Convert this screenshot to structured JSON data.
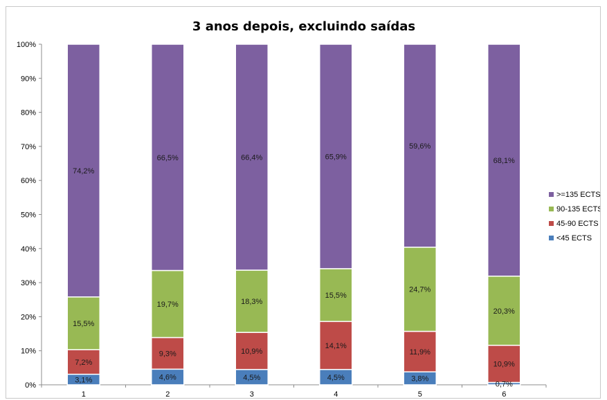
{
  "chart_data": {
    "type": "bar",
    "stacked": true,
    "percent": true,
    "title": "3 anos depois, excluindo saídas",
    "categories": [
      "1",
      "2",
      "3",
      "4",
      "5",
      "6"
    ],
    "ylim": [
      0,
      100
    ],
    "yticks": [
      "0%",
      "10%",
      "20%",
      "30%",
      "40%",
      "50%",
      "60%",
      "70%",
      "80%",
      "90%",
      "100%"
    ],
    "grid": false,
    "legend_position": "right",
    "series": [
      {
        "name": "<45 ECTS",
        "color": "#4a7ebb",
        "values": [
          3.1,
          4.6,
          4.5,
          4.5,
          3.8,
          0.7
        ],
        "labels": [
          "3,1%",
          "4,6%",
          "4,5%",
          "4,5%",
          "3,8%",
          "0,7%"
        ]
      },
      {
        "name": "45-90 ECTS",
        "color": "#be4b48",
        "values": [
          7.2,
          9.3,
          10.9,
          14.1,
          11.9,
          10.9
        ],
        "labels": [
          "7,2%",
          "9,3%",
          "10,9%",
          "14,1%",
          "11,9%",
          "10,9%"
        ]
      },
      {
        "name": "90-135 ECTS",
        "color": "#98b954",
        "values": [
          15.5,
          19.7,
          18.3,
          15.5,
          24.7,
          20.3
        ],
        "labels": [
          "15,5%",
          "19,7%",
          "18,3%",
          "15,5%",
          "24,7%",
          "20,3%"
        ]
      },
      {
        "name": ">=135 ECTS",
        "color": "#7d60a0",
        "values": [
          74.2,
          66.5,
          66.4,
          65.9,
          59.6,
          68.1
        ],
        "labels": [
          "74,2%",
          "66,5%",
          "66,4%",
          "65,9%",
          "59,6%",
          "68,1%"
        ]
      }
    ]
  }
}
